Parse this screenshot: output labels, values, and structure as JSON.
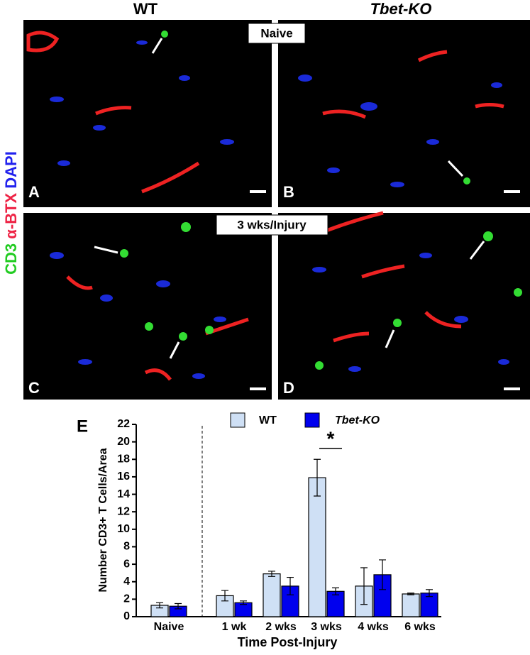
{
  "headers": {
    "left": "WT",
    "right": "Tbet-KO"
  },
  "side_label": [
    "CD3",
    "α-BTX",
    "DAPI"
  ],
  "panel_tags": [
    "Naive",
    "3 wks/Injury"
  ],
  "panels": [
    "A",
    "B",
    "C",
    "D"
  ],
  "chart_data": {
    "type": "bar",
    "panel": "E",
    "ylabel": "Number CD3+ T Cells/Area",
    "xlabel": "Time Post-Injury",
    "categories": [
      "Naive",
      "1 wk",
      "2 wks",
      "3 wks",
      "4 wks",
      "6 wks"
    ],
    "series": [
      {
        "name": "WT",
        "color": "#cfe0f5",
        "values": [
          1.3,
          2.4,
          4.9,
          15.9,
          3.5,
          2.6
        ],
        "errors": [
          0.3,
          0.6,
          0.3,
          2.1,
          2.1,
          0.1
        ]
      },
      {
        "name": "Tbet-KO",
        "color": "#0000ee",
        "values": [
          1.2,
          1.6,
          3.5,
          2.9,
          4.8,
          2.7
        ],
        "errors": [
          0.3,
          0.2,
          1.0,
          0.4,
          1.7,
          0.4
        ]
      }
    ],
    "ylim": [
      0,
      22
    ],
    "yticks": [
      0,
      2,
      4,
      6,
      8,
      10,
      12,
      14,
      16,
      18,
      20,
      22
    ],
    "legend": "top",
    "annotation": "*"
  }
}
